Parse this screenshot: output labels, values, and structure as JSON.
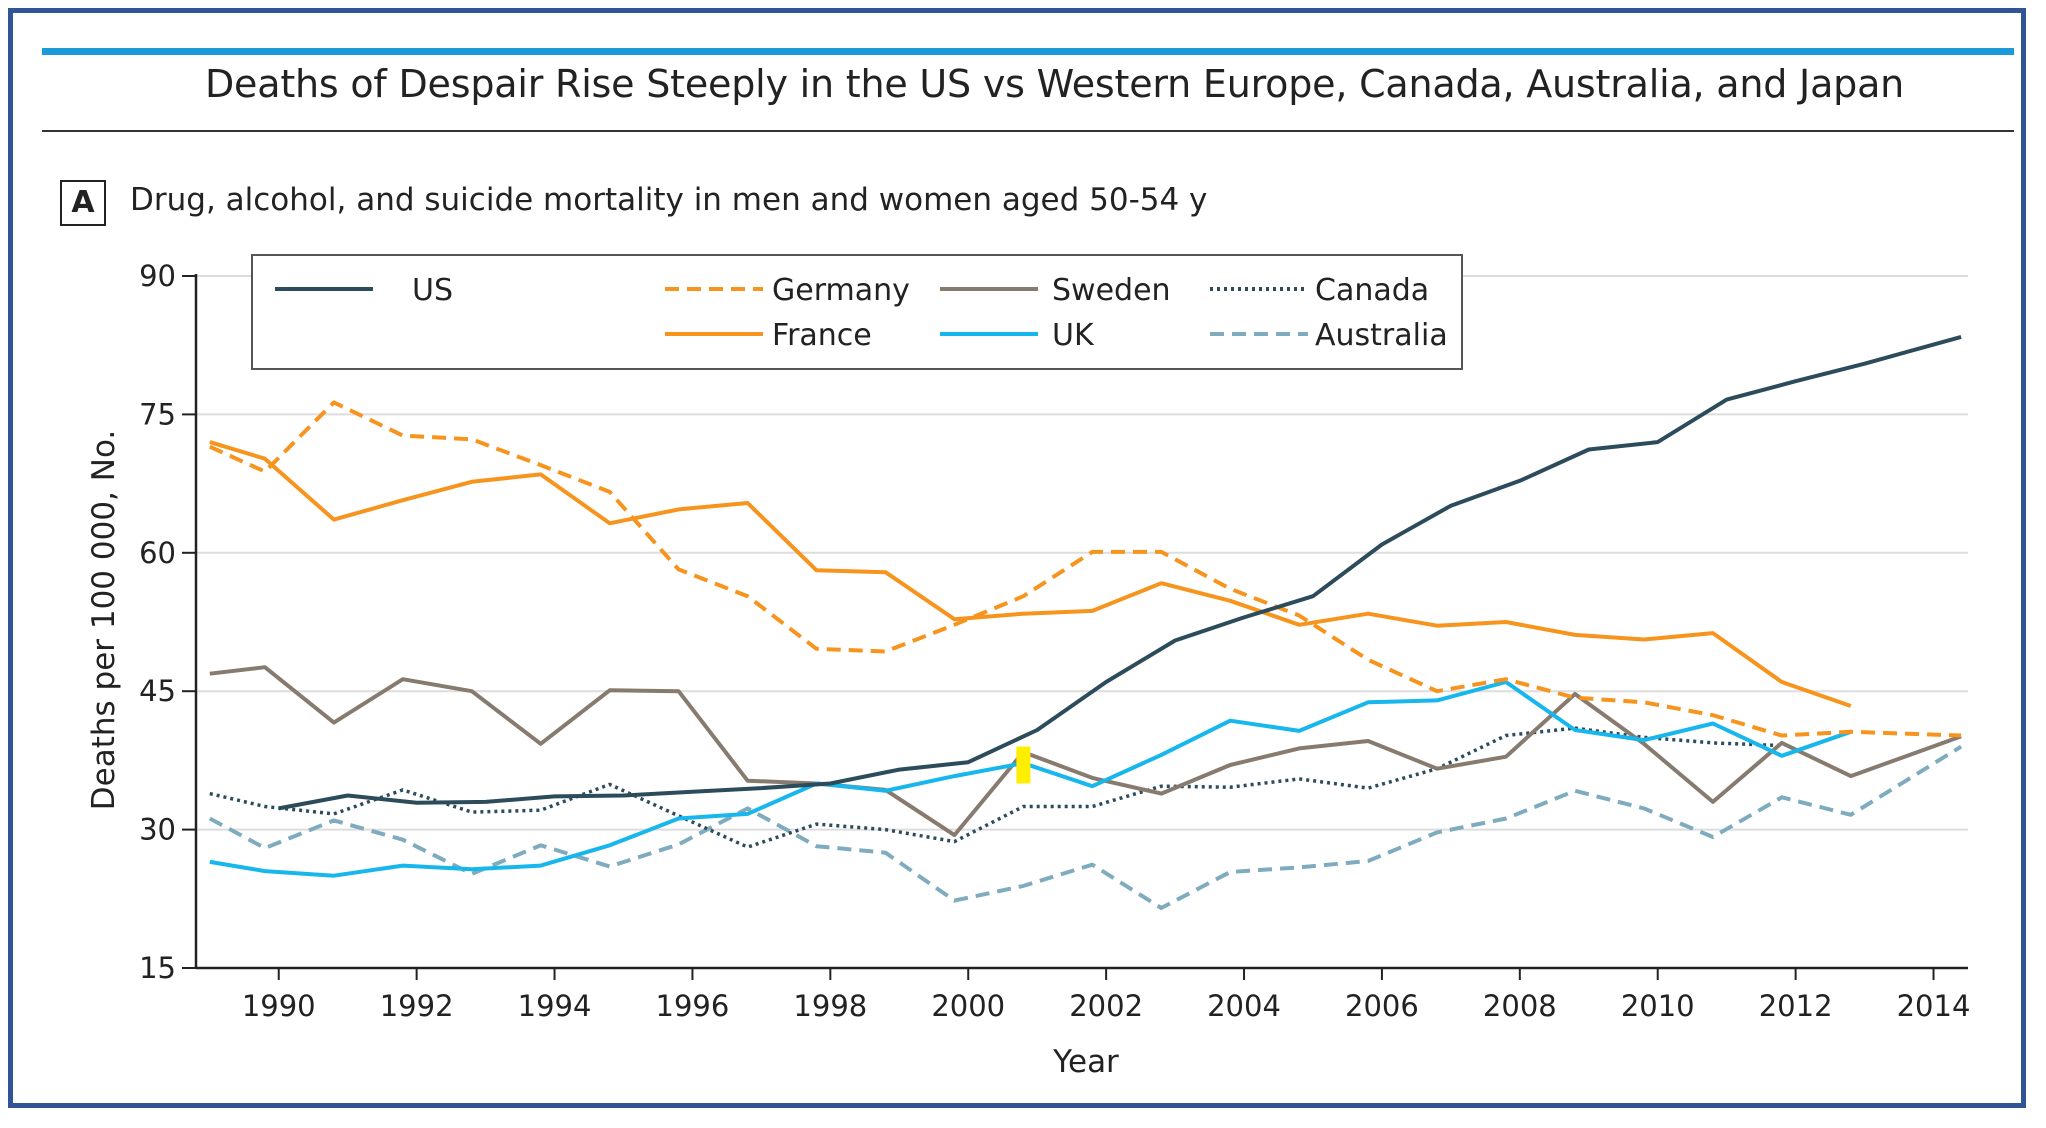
{
  "header": {
    "title": "Deaths of Despair Rise Steeply in the US vs Western Europe, Canada, Australia, and Japan",
    "panel_label": "A",
    "subtitle": "Drug, alcohol, and suicide mortality in men and women aged 50-54 y"
  },
  "chart_data": {
    "type": "line",
    "xlabel": "Year",
    "ylabel": "Deaths per 100 000, No.",
    "xlim": [
      1988.8,
      2014.5
    ],
    "ylim": [
      15,
      90
    ],
    "xticks": [
      1990,
      1992,
      1994,
      1996,
      1998,
      2000,
      2002,
      2004,
      2006,
      2008,
      2010,
      2012,
      2014
    ],
    "yticks": [
      15,
      30,
      45,
      60,
      75,
      90
    ],
    "grid": "horizontal",
    "legend_position": "top-left",
    "highlight": {
      "x": 2000.8,
      "y_from": 35,
      "y_to": 39,
      "color": "#ffee00"
    },
    "series": [
      {
        "name": "US",
        "color": "#2c4c5c",
        "dash": "solid",
        "x": [
          1990,
          1991,
          1992,
          1993,
          1994,
          1995,
          1996,
          1997,
          1998,
          1999,
          2000,
          2001,
          2002,
          2003,
          2004,
          2005,
          2006,
          2007,
          2008,
          2009,
          2010,
          2011,
          2012,
          2013,
          2014.4
        ],
        "y": [
          32.3,
          33.7,
          32.9,
          33.0,
          33.6,
          33.7,
          34.1,
          34.5,
          35.0,
          36.5,
          37.3,
          40.8,
          46.0,
          50.5,
          53.0,
          55.3,
          60.9,
          65.1,
          67.8,
          71.2,
          72.0,
          76.6,
          78.6,
          80.5,
          83.4
        ]
      },
      {
        "name": "Germany",
        "color": "#f7941d",
        "dash": "dashed",
        "x": [
          1989,
          1989.8,
          1990.8,
          1991.8,
          1992.8,
          1993.8,
          1994.8,
          1995.8,
          1996.8,
          1997.8,
          1998.8,
          1999.8,
          2000.8,
          2001.8,
          2002.8,
          2003.8,
          2004.8,
          2005.8,
          2006.8,
          2007.8,
          2008.8,
          2009.8,
          2010.8,
          2011.8,
          2012.8,
          2014.4
        ],
        "y": [
          71.5,
          68.8,
          76.3,
          72.7,
          72.3,
          69.5,
          66.6,
          58.2,
          55.3,
          49.6,
          49.3,
          52.2,
          55.3,
          60.1,
          60.1,
          56.1,
          53.2,
          48.4,
          45.0,
          46.3,
          44.3,
          43.8,
          42.4,
          40.2,
          40.6,
          40.2
        ]
      },
      {
        "name": "France",
        "color": "#f7941d",
        "dash": "solid",
        "x": [
          1989,
          1989.8,
          1990.8,
          1991.8,
          1992.8,
          1993.8,
          1994.8,
          1995.8,
          1996.8,
          1997.8,
          1998.8,
          1999.8,
          2000.8,
          2001.8,
          2002.8,
          2003.8,
          2004.8,
          2005.8,
          2006.8,
          2007.8,
          2008.8,
          2009.8,
          2010.8,
          2011.8,
          2012.8
        ],
        "y": [
          72.0,
          70.2,
          63.6,
          65.7,
          67.7,
          68.5,
          63.2,
          64.7,
          65.4,
          58.1,
          57.9,
          52.8,
          53.4,
          53.7,
          56.7,
          54.8,
          52.2,
          53.4,
          52.1,
          52.5,
          51.1,
          50.6,
          51.3,
          46.0,
          43.4
        ]
      },
      {
        "name": "Sweden",
        "color": "#877a6e",
        "dash": "solid",
        "x": [
          1989,
          1989.8,
          1990.8,
          1991.8,
          1992.8,
          1993.8,
          1994.8,
          1995.8,
          1996.8,
          1997.8,
          1998.8,
          1999.8,
          2000.8,
          2001.8,
          2002.8,
          2003.8,
          2004.8,
          2005.8,
          2006.8,
          2007.8,
          2008.8,
          2009.8,
          2010.8,
          2011.8,
          2012.8,
          2014.4
        ],
        "y": [
          46.9,
          47.6,
          41.6,
          46.3,
          45.0,
          39.3,
          45.1,
          45.0,
          35.3,
          35.0,
          34.3,
          29.4,
          38.4,
          35.6,
          33.9,
          37.0,
          38.8,
          39.6,
          36.6,
          37.9,
          44.7,
          39.3,
          33.0,
          39.4,
          35.8,
          40.1
        ]
      },
      {
        "name": "UK",
        "color": "#17b7ee",
        "dash": "solid",
        "x": [
          1989,
          1989.8,
          1990.8,
          1991.8,
          1992.8,
          1993.8,
          1994.8,
          1995.8,
          1996.8,
          1997.8,
          1998.8,
          1999.8,
          2000.8,
          2001.8,
          2002.8,
          2003.8,
          2004.8,
          2005.8,
          2006.8,
          2007.8,
          2008.8,
          2009.8,
          2010.8,
          2011.8,
          2012.8
        ],
        "y": [
          26.5,
          25.5,
          25.0,
          26.1,
          25.7,
          26.1,
          28.3,
          31.2,
          31.7,
          35.0,
          34.2,
          35.8,
          37.2,
          34.7,
          38.1,
          41.8,
          40.7,
          43.8,
          44.0,
          46.0,
          40.8,
          39.7,
          41.5,
          38.0,
          40.6
        ]
      },
      {
        "name": "Canada",
        "color": "#2c4c5c",
        "dash": "dotted",
        "x": [
          1989,
          1989.8,
          1990.8,
          1991.8,
          1992.8,
          1993.8,
          1994.8,
          1995.8,
          1996.8,
          1997.8,
          1998.8,
          1999.8,
          2000.8,
          2001.8,
          2002.8,
          2003.8,
          2004.8,
          2005.8,
          2006.8,
          2007.8,
          2008.8,
          2009.8,
          2010.8,
          2011.8
        ],
        "y": [
          33.9,
          32.5,
          31.7,
          34.3,
          31.9,
          32.1,
          34.9,
          31.5,
          28.1,
          30.6,
          30.0,
          28.7,
          32.5,
          32.5,
          34.7,
          34.6,
          35.5,
          34.5,
          36.6,
          40.2,
          41.0,
          40.0,
          39.4,
          39.1
        ]
      },
      {
        "name": "Australia",
        "color": "#7fabbe",
        "dash": "dashed",
        "x": [
          1989,
          1989.8,
          1990.8,
          1991.8,
          1992.8,
          1993.8,
          1994.8,
          1995.8,
          1996.8,
          1997.8,
          1998.8,
          1999.8,
          2000.8,
          2001.8,
          2002.8,
          2003.8,
          2004.8,
          2005.8,
          2006.8,
          2007.8,
          2008.8,
          2009.8,
          2010.8,
          2011.8,
          2012.8,
          2014.4
        ],
        "y": [
          31.2,
          28.0,
          31.0,
          28.9,
          25.2,
          28.3,
          26.0,
          28.4,
          32.3,
          28.2,
          27.5,
          22.3,
          23.9,
          26.2,
          21.5,
          25.4,
          25.9,
          26.6,
          29.7,
          31.2,
          34.2,
          32.3,
          29.2,
          33.5,
          31.6,
          39.0
        ]
      }
    ]
  }
}
